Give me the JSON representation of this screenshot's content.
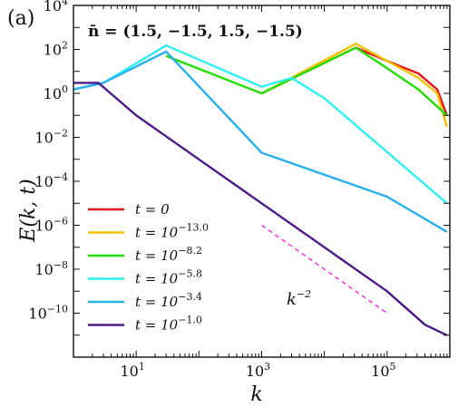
{
  "chart_data": {
    "type": "line",
    "panel_label": "(a)",
    "title": "n̄ = (1.5, −1.5, 1.5, −1.5)",
    "xlabel": "k",
    "ylabel": "E(k, t)",
    "xscale": "log",
    "yscale": "log",
    "xlim": [
      1,
      1000000
    ],
    "ylim": [
      1e-12,
      10000
    ],
    "x_ticks": [
      {
        "value": 10,
        "base": "10",
        "exp": "1"
      },
      {
        "value": 1000,
        "base": "10",
        "exp": "3"
      },
      {
        "value": 100000,
        "base": "10",
        "exp": "5"
      }
    ],
    "y_ticks": [
      {
        "value": 1e-10,
        "base": "10",
        "exp": "−10"
      },
      {
        "value": 1e-08,
        "base": "10",
        "exp": "−8"
      },
      {
        "value": 1e-06,
        "base": "10",
        "exp": "−6"
      },
      {
        "value": 0.0001,
        "base": "10",
        "exp": "−4"
      },
      {
        "value": 0.01,
        "base": "10",
        "exp": "−2"
      },
      {
        "value": 1,
        "base": "10",
        "exp": "0"
      },
      {
        "value": 100,
        "base": "10",
        "exp": "2"
      },
      {
        "value": 10000,
        "base": "10",
        "exp": "4"
      }
    ],
    "legend_position": "lower-left",
    "series": [
      {
        "name": "t = 0",
        "label_base": "t = 0",
        "label_exp": "",
        "color": "#e8141c",
        "points": [
          [
            1000,
            1
          ],
          [
            31623,
            120
          ],
          [
            100000,
            30
          ],
          [
            316228,
            8
          ],
          [
            630000,
            1.5
          ],
          [
            900000,
            0.1
          ]
        ]
      },
      {
        "name": "t = 10^−13.0",
        "label_base": "t = 10",
        "label_exp": "−13.0",
        "color": "#f2c200",
        "points": [
          [
            1000,
            1
          ],
          [
            31623,
            180
          ],
          [
            100000,
            30
          ],
          [
            316228,
            5
          ],
          [
            630000,
            1
          ],
          [
            900000,
            0.03
          ]
        ]
      },
      {
        "name": "t = 10^−8.2",
        "label_base": "t = 10",
        "label_exp": "−8.2",
        "color": "#22dd00",
        "points": [
          [
            30,
            50
          ],
          [
            1000,
            1
          ],
          [
            31623,
            120
          ],
          [
            100000,
            14
          ],
          [
            316228,
            1.5
          ],
          [
            900000,
            0.1
          ]
        ]
      },
      {
        "name": "t = 10^−5.8",
        "label_base": "t = 10",
        "label_exp": "−5.8",
        "color": "#2ff0f0",
        "points": [
          [
            1,
            1.5
          ],
          [
            3,
            3
          ],
          [
            30,
            150
          ],
          [
            1000,
            2
          ],
          [
            3000,
            5
          ],
          [
            10000,
            0.6
          ],
          [
            900000,
            1e-05
          ]
        ]
      },
      {
        "name": "t = 10^−3.4",
        "label_base": "t = 10",
        "label_exp": "−3.4",
        "color": "#26b0ee",
        "points": [
          [
            1,
            1.5
          ],
          [
            3,
            3
          ],
          [
            30,
            80
          ],
          [
            1000,
            0.002
          ],
          [
            10000,
            0.0002
          ],
          [
            100000,
            2e-05
          ],
          [
            900000,
            5e-07
          ]
        ]
      },
      {
        "name": "t = 10^−1.0",
        "label_base": "t = 10",
        "label_exp": "−1.0",
        "color": "#4b1a88",
        "points": [
          [
            1,
            3
          ],
          [
            2.5,
            3
          ],
          [
            10,
            0.1
          ],
          [
            100,
            0.001
          ],
          [
            1000,
            1e-05
          ],
          [
            10000,
            1e-07
          ],
          [
            100000,
            1e-09
          ],
          [
            400000,
            3e-11
          ],
          [
            900000,
            1e-11
          ]
        ]
      }
    ],
    "reference_line": {
      "label_base": "k",
      "label_exp": "−2",
      "color": "#ff33dd",
      "dashed": true,
      "points": [
        [
          1000,
          1e-06
        ],
        [
          100000,
          1e-10
        ]
      ]
    }
  }
}
